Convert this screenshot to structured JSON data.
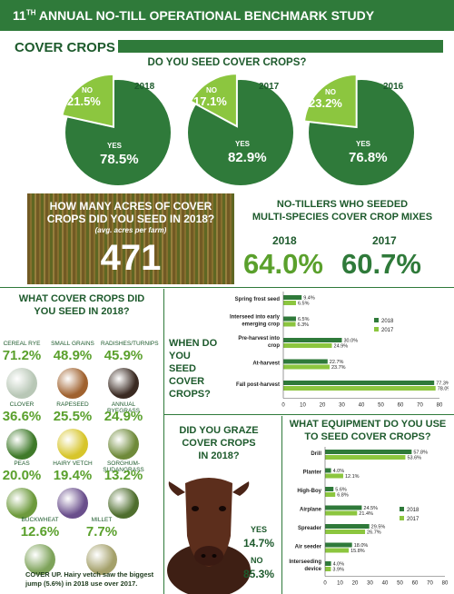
{
  "header": {
    "ordinal": "11",
    "ordinal_suffix": "TH",
    "title_rest": "ANNUAL NO-TILL OPERATIONAL BENCHMARK STUDY"
  },
  "section_title": "COVER CROPS",
  "seed_question": "DO YOU SEED COVER CROPS?",
  "pies": [
    {
      "year": "2018",
      "no_label": "NO",
      "no_pct": "21.5%",
      "yes_label": "YES",
      "yes_pct": "78.5%",
      "no_value": 21.5
    },
    {
      "year": "2017",
      "no_label": "NO",
      "no_pct": "17.1%",
      "yes_label": "YES",
      "yes_pct": "82.9%",
      "no_value": 17.1
    },
    {
      "year": "2016",
      "no_label": "NO",
      "no_pct": "23.2%",
      "yes_label": "YES",
      "yes_pct": "76.8%",
      "no_value": 23.2
    }
  ],
  "acres": {
    "question_line1": "HOW MANY ACRES OF COVER",
    "question_line2": "CROPS DID YOU SEED IN 2018?",
    "sub": "(avg. acres per farm)",
    "value": "471"
  },
  "multi_species": {
    "title_line1": "NO-TILLERS WHO SEEDED",
    "title_line2": "MULTI-SPECIES COVER CROP MIXES",
    "y1": "2018",
    "v1": "64.0%",
    "y2": "2017",
    "v2": "60.7%"
  },
  "what_crops": {
    "title_line1": "WHAT COVER CROPS DID",
    "title_line2": "YOU SEED IN 2018?",
    "items": [
      {
        "name": "CEREAL RYE",
        "value": "71.2%",
        "color": "#b8c7b6"
      },
      {
        "name": "SMALL GRAINS",
        "value": "48.9%",
        "color": "#a0622f"
      },
      {
        "name": "RADISHES/TURNIPS",
        "value": "45.9%",
        "color": "#3a2a22"
      },
      {
        "name": "CLOVER",
        "value": "36.6%",
        "color": "#3f7a2a"
      },
      {
        "name": "RAPESEED",
        "value": "25.5%",
        "color": "#d7c52b"
      },
      {
        "name": "ANNUAL RYEGRASS",
        "value": "24.9%",
        "color": "#6f8a3a"
      },
      {
        "name": "PEAS",
        "value": "20.0%",
        "color": "#6d9a3c"
      },
      {
        "name": "HAIRY VETCH",
        "value": "19.4%",
        "color": "#6a4f8c"
      },
      {
        "name": "SORGHUM-SUDANGRASS",
        "value": "13.2%",
        "color": "#4f6e2e"
      },
      {
        "name": "BUCKWHEAT",
        "value": "12.6%",
        "color": "#7ea35a"
      },
      {
        "name": "MILLET",
        "value": "7.7%",
        "color": "#a4a06a"
      }
    ]
  },
  "when_seed": {
    "title_line1": "WHEN DO YOU",
    "title_line2": "SEED COVER",
    "title_line3": "CROPS?"
  },
  "graze": {
    "question_line1": "DID YOU GRAZE",
    "question_line2": "COVER CROPS",
    "question_line3": "IN 2018?",
    "yes_label": "YES",
    "yes_val": "14.7%",
    "no_label": "NO",
    "no_val": "85.3%"
  },
  "equipment": {
    "title_line1": "WHAT EQUIPMENT DO YOU USE",
    "title_line2": "TO SEED COVER CROPS?"
  },
  "caption": "COVER UP. Hairy vetch saw the biggest jump (5.6%) in 2018 use over 2017.",
  "colors": {
    "dark_green": "#2f7a3a",
    "light_green": "#8cc63f",
    "text_green": "#1d5a2c"
  },
  "chart_data": [
    {
      "type": "pie",
      "title": "DO YOU SEED COVER CROPS?",
      "charts": [
        {
          "year": "2018",
          "slices": [
            {
              "label": "YES",
              "value": 78.5
            },
            {
              "label": "NO",
              "value": 21.5
            }
          ]
        },
        {
          "year": "2017",
          "slices": [
            {
              "label": "YES",
              "value": 82.9
            },
            {
              "label": "NO",
              "value": 17.1
            }
          ]
        },
        {
          "year": "2016",
          "slices": [
            {
              "label": "YES",
              "value": 76.8
            },
            {
              "label": "NO",
              "value": 23.2
            }
          ]
        }
      ]
    },
    {
      "type": "bar",
      "orientation": "horizontal",
      "title": "WHEN DO YOU SEED COVER CROPS?",
      "categories": [
        "Spring frost seed",
        "Interseed into early emerging crop",
        "Pre-harvest into crop",
        "At-harvest",
        "Fall post-harvest"
      ],
      "series": [
        {
          "name": "2018",
          "values": [
            9.4,
            6.5,
            30.0,
            22.7,
            77.3
          ],
          "labels": [
            "9.4%",
            "6.5%",
            "30.0%",
            "22.7%",
            "77.3%"
          ]
        },
        {
          "name": "2017",
          "values": [
            6.5,
            6.3,
            24.9,
            23.7,
            78.0
          ],
          "labels": [
            "6.5%",
            "6.3%",
            "24.9%",
            "23.7%",
            "78.0%"
          ]
        }
      ],
      "xlim": [
        0,
        80
      ],
      "ticks": [
        "0",
        "10",
        "20",
        "30",
        "40",
        "50",
        "60",
        "70",
        "80"
      ],
      "legend": "right"
    },
    {
      "type": "bar",
      "orientation": "horizontal",
      "title": "WHAT EQUIPMENT DO YOU USE TO SEED COVER CROPS?",
      "categories": [
        "Drill",
        "Planter",
        "High-Boy",
        "Airplane",
        "Spreader",
        "Air seeder",
        "Interseeding device"
      ],
      "series": [
        {
          "name": "2018",
          "values": [
            57.8,
            4.0,
            5.6,
            24.5,
            29.5,
            18.0,
            4.0
          ],
          "labels": [
            "57.8%",
            "4.0%",
            "5.6%",
            "24.5%",
            "29.5%",
            "18.0%",
            "4.0%"
          ]
        },
        {
          "name": "2017",
          "values": [
            53.6,
            12.1,
            6.8,
            21.4,
            26.7,
            15.8,
            3.9
          ],
          "labels": [
            "53.6%",
            "12.1%",
            "6.8%",
            "21.4%",
            "26.7%",
            "15.8%",
            "3.9%"
          ]
        }
      ],
      "xlim": [
        0,
        80
      ],
      "ticks": [
        "0",
        "10",
        "20",
        "30",
        "40",
        "50",
        "60",
        "70",
        "80"
      ],
      "legend": "right"
    }
  ]
}
